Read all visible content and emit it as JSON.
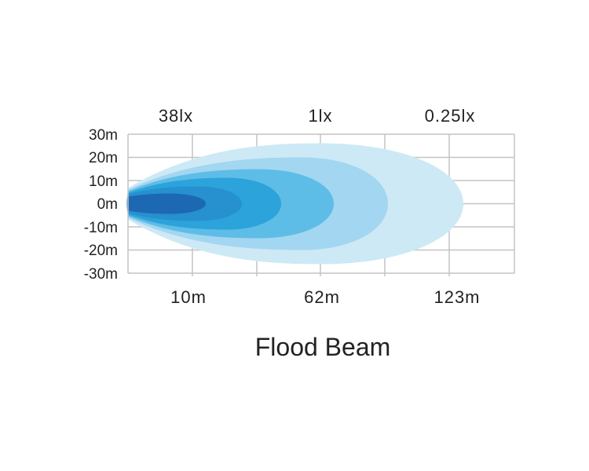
{
  "chart_data": {
    "type": "area",
    "title": "Flood Beam",
    "lux_labels": [
      "38lx",
      "1lx",
      "0.25lx"
    ],
    "x_tick_labels": [
      "10m",
      "62m",
      "123m"
    ],
    "y_tick_labels": [
      "30m",
      "20m",
      "10m",
      "0m",
      "-10m",
      "-20m",
      "-30m"
    ],
    "ylim": [
      -30,
      30
    ],
    "grid": true,
    "contour_colors": [
      "#cde9f6",
      "#a3d6f0",
      "#5ebde7",
      "#2ca3da",
      "#2790cf",
      "#1d68b2"
    ]
  }
}
